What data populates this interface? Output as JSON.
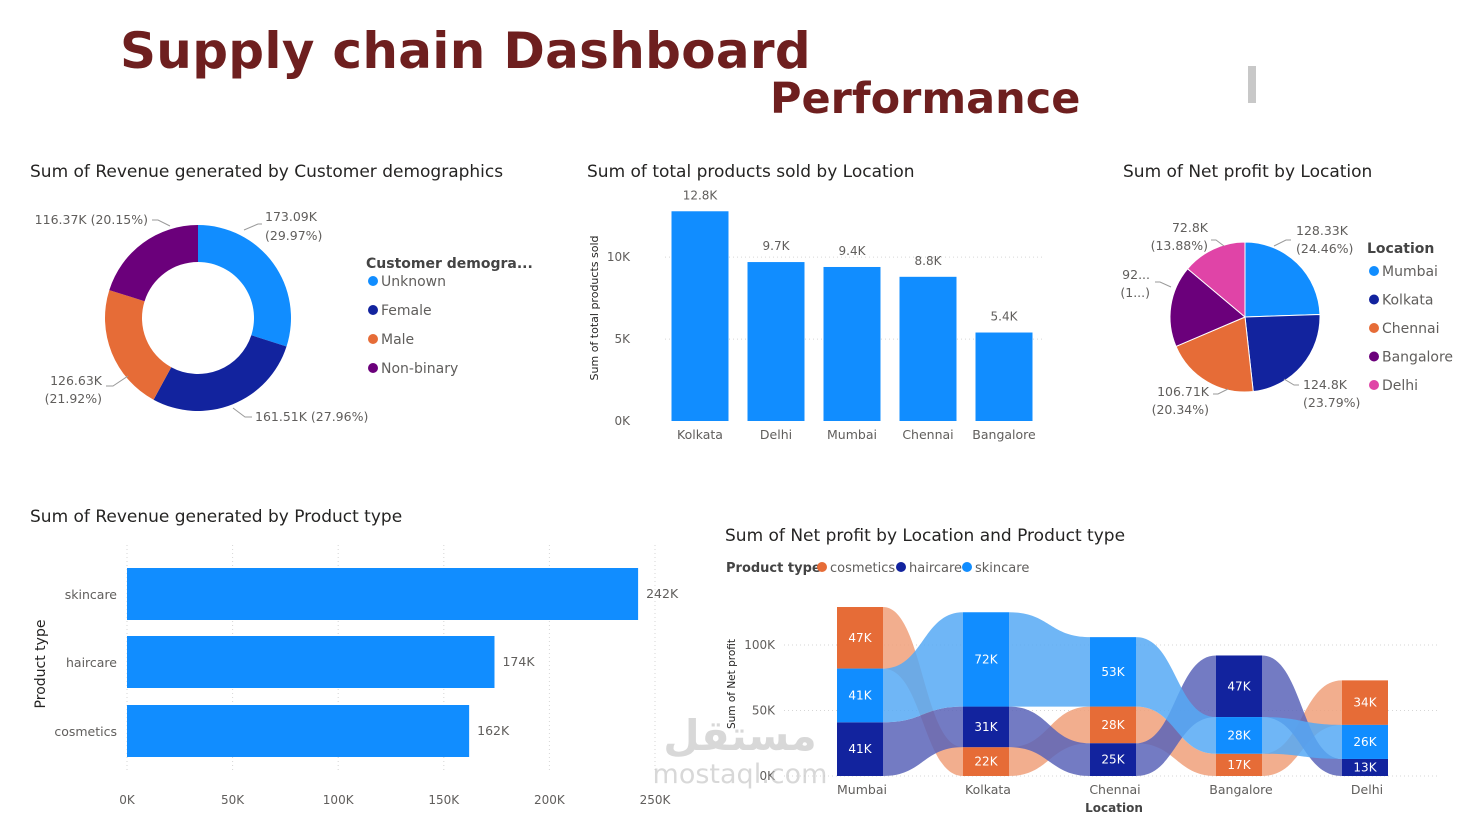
{
  "header": {
    "title": "Supply chain Dashboard",
    "subtitle": "Performance"
  },
  "watermark": {
    "arabic": "مستقل",
    "latin": "mostaql.com"
  },
  "colors": {
    "title": "#6e1f1f",
    "blue": "#118DFF",
    "navy": "#12239E",
    "orange": "#E66C37",
    "purple": "#6B007B",
    "pink": "#E044A7",
    "light_orange": "#F0A07A",
    "light_blue": "#56A9F5",
    "light_navy": "#5A64B8"
  },
  "chart_data": [
    {
      "id": "demographics",
      "type": "pie",
      "variant": "donut",
      "title": "Sum of Revenue generated by Customer demographics",
      "legend_title": "Customer demogra...",
      "legend_placement": "right",
      "slices": [
        {
          "label": "Unknown",
          "value": 173.09,
          "display": "173.09K",
          "pct": "(29.97%)",
          "color": "#118DFF"
        },
        {
          "label": "Female",
          "value": 161.51,
          "display": "161.51K",
          "pct": "(27.96%)",
          "color": "#12239E"
        },
        {
          "label": "Male",
          "value": 126.63,
          "display": "126.63K",
          "pct": "(21.92%)",
          "color": "#E66C37"
        },
        {
          "label": "Non-binary",
          "value": 116.37,
          "display": "116.37K",
          "pct": "(20.15%)",
          "color": "#6B007B"
        }
      ]
    },
    {
      "id": "products_sold",
      "type": "bar",
      "title": "Sum of total products sold by Location",
      "ylabel": "Sum of total products sold",
      "xlabel": "",
      "ylim": [
        0,
        13000
      ],
      "yticks": [
        {
          "v": 0,
          "label": "0K"
        },
        {
          "v": 5000,
          "label": "5K"
        },
        {
          "v": 10000,
          "label": "10K"
        }
      ],
      "categories": [
        "Kolkata",
        "Delhi",
        "Mumbai",
        "Chennai",
        "Bangalore"
      ],
      "values": [
        12800,
        9700,
        9400,
        8800,
        5400
      ],
      "labels": [
        "12.8K",
        "9.7K",
        "9.4K",
        "8.8K",
        "5.4K"
      ],
      "color": "#118DFF"
    },
    {
      "id": "net_profit_location",
      "type": "pie",
      "title": "Sum of Net profit by Location",
      "legend_title": "Location",
      "legend_placement": "right",
      "slices": [
        {
          "label": "Mumbai",
          "value": 128.33,
          "line1": "128.33K",
          "line2": "(24.46%)",
          "color": "#118DFF"
        },
        {
          "label": "Kolkata",
          "value": 124.8,
          "line1": "124.8K",
          "line2": "(23.79%)",
          "color": "#12239E"
        },
        {
          "label": "Chennai",
          "value": 106.71,
          "line1": "106.71K",
          "line2": "(20.34%)",
          "color": "#E66C37"
        },
        {
          "label": "Bangalore",
          "value": 92.0,
          "line1": "92...",
          "line2": "(1...)",
          "color": "#6B007B"
        },
        {
          "label": "Delhi",
          "value": 72.8,
          "line1": "72.8K",
          "line2": "(13.88%)",
          "color": "#E044A7"
        }
      ]
    },
    {
      "id": "revenue_product",
      "type": "bar",
      "orientation": "horizontal",
      "title": "Sum of Revenue generated by Product type",
      "ylabel": "Product type",
      "xlabel": "",
      "xlim": [
        0,
        250000
      ],
      "xticks": [
        {
          "v": 0,
          "label": "0K"
        },
        {
          "v": 50000,
          "label": "50K"
        },
        {
          "v": 100000,
          "label": "100K"
        },
        {
          "v": 150000,
          "label": "150K"
        },
        {
          "v": 200000,
          "label": "200K"
        },
        {
          "v": 250000,
          "label": "250K"
        }
      ],
      "categories": [
        "skincare",
        "haircare",
        "cosmetics"
      ],
      "values": [
        242000,
        174000,
        162000
      ],
      "labels": [
        "242K",
        "174K",
        "162K"
      ],
      "color": "#118DFF"
    },
    {
      "id": "ribbon",
      "type": "area",
      "variant": "ribbon",
      "title": "Sum of Net profit by Location and Product type",
      "legend_title": "Product type",
      "legend_placement": "top-left",
      "xlabel": "Location",
      "ylabel": "Sum of Net profit",
      "ylim": [
        0,
        130000
      ],
      "yticks": [
        {
          "v": 0,
          "label": "0K"
        },
        {
          "v": 50000,
          "label": "50K"
        },
        {
          "v": 100000,
          "label": "100K"
        }
      ],
      "categories": [
        "Mumbai",
        "Kolkata",
        "Chennai",
        "Bangalore",
        "Delhi"
      ],
      "series": [
        {
          "name": "cosmetics",
          "color": "#E66C37",
          "light": "#F0A07A",
          "values": [
            47000,
            22000,
            28000,
            17000,
            34000
          ],
          "labels": [
            "47K",
            "22K",
            "28K",
            "17K",
            "34K"
          ]
        },
        {
          "name": "haircare",
          "color": "#12239E",
          "light": "#5A64B8",
          "values": [
            41000,
            31000,
            25000,
            47000,
            13000
          ],
          "labels": [
            "41K",
            "31K",
            "25K",
            "47K",
            "13K"
          ]
        },
        {
          "name": "skincare",
          "color": "#118DFF",
          "light": "#56A9F5",
          "values": [
            41000,
            72000,
            53000,
            28000,
            26000
          ],
          "labels": [
            "41K",
            "72K",
            "53K",
            "28K",
            "26K"
          ]
        }
      ]
    }
  ]
}
